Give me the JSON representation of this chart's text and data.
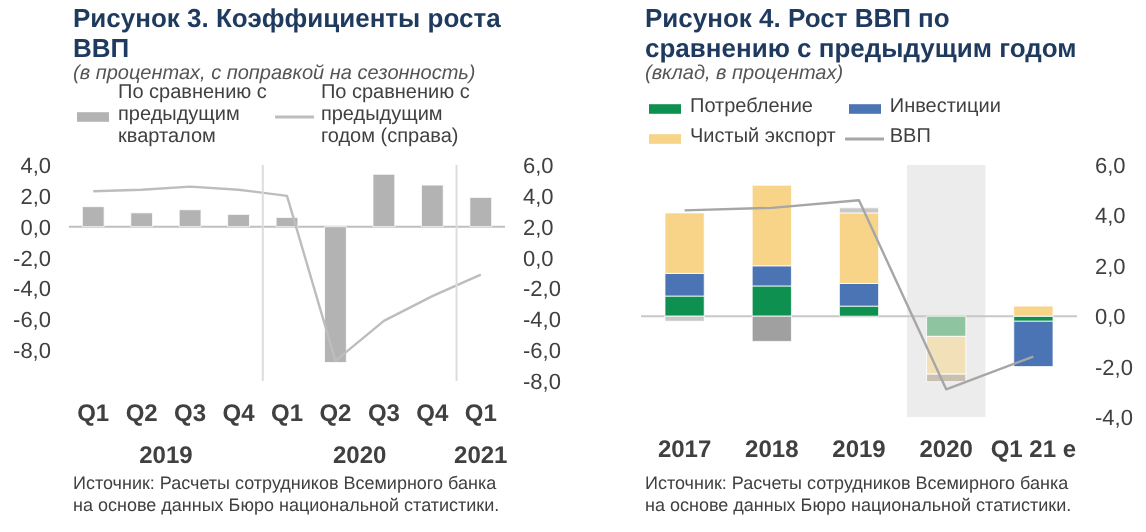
{
  "chart_data": [
    {
      "type": "bar",
      "title": "Рисунок 3. Коэффициенты роста ВВП",
      "subtitle": "(в процентах, с поправкой на сезонность)",
      "categories": [
        "Q1",
        "Q2",
        "Q3",
        "Q4",
        "Q1",
        "Q2",
        "Q3",
        "Q4",
        "Q1"
      ],
      "series": [
        {
          "name": "По сравнению с предыдущим кварталом",
          "color": "#b3b3b3",
          "values": [
            1.3,
            0.9,
            1.1,
            0.8,
            0.6,
            -8.8,
            3.4,
            2.7,
            1.9
          ]
        },
        {
          "type": "line",
          "axis": "y2",
          "name": "По сравнению с предыдущим годом (справа)",
          "color": "#bdbdbd",
          "values": [
            4.3,
            4.4,
            4.6,
            4.4,
            4.0,
            -6.7,
            -4.1,
            -2.5,
            -1.1
          ]
        }
      ],
      "ylim": [
        -10,
        4
      ],
      "yticks": [
        {
          "value": 4,
          "label": "4,0"
        },
        {
          "value": 2,
          "label": "2,0"
        },
        {
          "value": 0,
          "label": "0,0"
        },
        {
          "value": -2,
          "label": "-2,0"
        },
        {
          "value": -4,
          "label": "-4,0"
        },
        {
          "value": -6,
          "label": "-6,0"
        },
        {
          "value": -8,
          "label": "-8,0"
        }
      ],
      "y2lim": [
        -8,
        6
      ],
      "y2ticks": [
        {
          "value": 6,
          "label": "6,0"
        },
        {
          "value": 4,
          "label": "4,0"
        },
        {
          "value": 2,
          "label": "2,0"
        },
        {
          "value": 0,
          "label": "0,0"
        },
        {
          "value": -2,
          "label": "-2,0"
        },
        {
          "value": -4,
          "label": "-4,0"
        },
        {
          "value": -6,
          "label": "-6,0"
        },
        {
          "value": -8,
          "label": "-8,0"
        }
      ],
      "ref_lines": [
        {
          "axis": "y",
          "value": 0,
          "color": "#bfbfbf"
        }
      ],
      "legend": "top",
      "grid": false,
      "annotations": [
        "2019",
        "2020",
        "2021",
        "Источник: Расчеты сотрудников Всемирного банка на основе данных Бюро национальной статистики."
      ]
    },
    {
      "type": "bar",
      "stacked": true,
      "title": "Рисунок 4. Рост ВВП по сравнению с предыдущим годом",
      "subtitle": "(вклад, в процентах)",
      "categories": [
        "2017",
        "2018",
        "2019",
        "2020",
        "Q1 21 e"
      ],
      "series": [
        {
          "name": "Потребление",
          "axis": "y2",
          "color": "#0e9150",
          "colors": [
            "#0e9150",
            "#0e9150",
            "#0e9150",
            "#8fc4a0",
            "#0e9150"
          ],
          "values": [
            0.8,
            1.2,
            0.4,
            -0.8,
            -0.2
          ]
        },
        {
          "name": "Инвестиции",
          "axis": "y2",
          "color": "#4a74b4",
          "values": [
            0.9,
            0.8,
            0.9,
            null,
            -1.8
          ]
        },
        {
          "name": "Чистый экспорт",
          "axis": "y2",
          "color": "#f7d488",
          "colors": [
            "#f7d488",
            "#f7d488",
            "#f7d488",
            "#f2e1b8",
            "#f7d488"
          ],
          "values": [
            2.4,
            3.2,
            2.8,
            -1.5,
            0.4
          ]
        },
        {
          "axis": "y2",
          "color": "#a0a0a0",
          "colors": [
            "#c8c8c8",
            "#a0a0a0",
            "#c8c8c8",
            "#c9c0b0",
            "#a0a0a0"
          ],
          "values": [
            -0.2,
            -1.0,
            0.2,
            -0.3,
            null
          ]
        },
        {
          "type": "line",
          "axis": "y2",
          "name": "ВВП",
          "color": "#a6a6a6",
          "values": [
            4.2,
            4.3,
            4.6,
            -2.9,
            -1.6
          ]
        }
      ],
      "y2lim": [
        -4,
        6
      ],
      "y2ticks": [
        {
          "value": 6,
          "label": "6,0"
        },
        {
          "value": 4,
          "label": "4,0"
        },
        {
          "value": 2,
          "label": "2,0"
        },
        {
          "value": 0,
          "label": "0,0"
        },
        {
          "value": -2,
          "label": "-2,0"
        },
        {
          "value": -4,
          "label": "-4,0"
        }
      ],
      "bands": [
        {
          "axis": "x",
          "from": "2020",
          "to": "2020",
          "color": "#ececec"
        }
      ],
      "ref_lines": [
        {
          "axis": "y2",
          "value": 0,
          "color": "#c8c8c8"
        }
      ],
      "legend": "top",
      "grid": false,
      "annotations": [
        "Источник: Расчеты сотрудников Всемирного банка на основе данных Бюро национальной статистики."
      ]
    }
  ]
}
